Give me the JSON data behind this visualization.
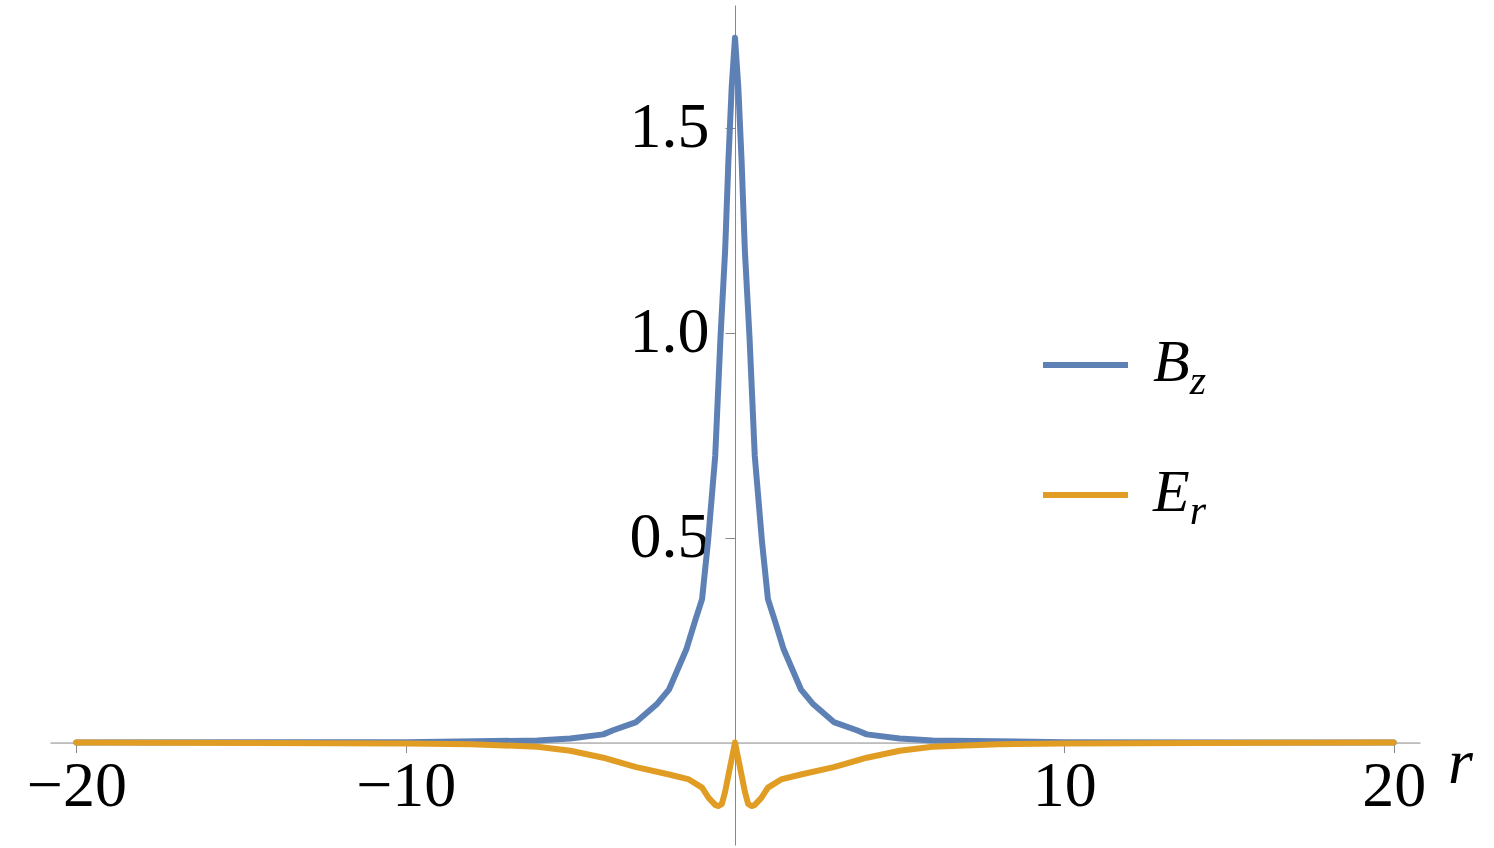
{
  "chart_data": {
    "type": "line",
    "xlabel": "r",
    "xlim": [
      -20.8,
      20.8
    ],
    "ylim": [
      -0.25,
      1.8
    ],
    "xticks": [
      {
        "value": -20,
        "label": "−20"
      },
      {
        "value": -10,
        "label": "−10"
      },
      10,
      20
    ],
    "yticks": [
      0.5,
      {
        "value": 1,
        "label": "1.0"
      },
      1.5
    ],
    "legend": "right",
    "series": [
      {
        "name": "B$_{z}$",
        "color": "#5e81b5",
        "x": [
          -20,
          -10,
          -6,
          -5,
          -4,
          -3.7,
          -3,
          -2.36,
          -2,
          -1.48,
          -1.2,
          -1,
          -0.82,
          -0.6,
          -0.44,
          -0.3,
          -0.2,
          -0.1,
          0,
          0.1,
          0.2,
          0.3,
          0.44,
          0.6,
          0.82,
          1,
          1.2,
          1.48,
          2,
          2.36,
          3,
          3.7,
          4,
          5,
          6,
          10,
          20
        ],
        "values": [
          0,
          0.001,
          0.005,
          0.01,
          0.02,
          0.03,
          0.05,
          0.095,
          0.13,
          0.227,
          0.3,
          0.35,
          0.49,
          0.7,
          0.99,
          1.2,
          1.42,
          1.6,
          1.72,
          1.6,
          1.42,
          1.2,
          0.99,
          0.7,
          0.49,
          0.35,
          0.3,
          0.227,
          0.13,
          0.095,
          0.05,
          0.03,
          0.02,
          0.01,
          0.005,
          0.001,
          0
        ]
      },
      {
        "name": "E$_{r}$",
        "color": "#e19c24",
        "x": [
          -20,
          -10,
          -8,
          -6,
          -5,
          -4,
          -3,
          -2,
          -1.4,
          -1,
          -0.8,
          -0.6,
          -0.5,
          -0.4,
          -0.3,
          -0.15,
          -0.05,
          0,
          0.05,
          0.15,
          0.3,
          0.4,
          0.5,
          0.6,
          0.8,
          1,
          1.4,
          2,
          3,
          4,
          5,
          6,
          8,
          10,
          20
        ],
        "values": [
          0,
          -0.002,
          -0.004,
          -0.01,
          -0.02,
          -0.037,
          -0.06,
          -0.078,
          -0.09,
          -0.11,
          -0.135,
          -0.152,
          -0.155,
          -0.15,
          -0.12,
          -0.06,
          -0.02,
          0,
          -0.02,
          -0.06,
          -0.12,
          -0.15,
          -0.155,
          -0.152,
          -0.135,
          -0.11,
          -0.09,
          -0.078,
          -0.06,
          -0.037,
          -0.02,
          -0.01,
          -0.004,
          -0.002,
          0
        ]
      }
    ]
  }
}
